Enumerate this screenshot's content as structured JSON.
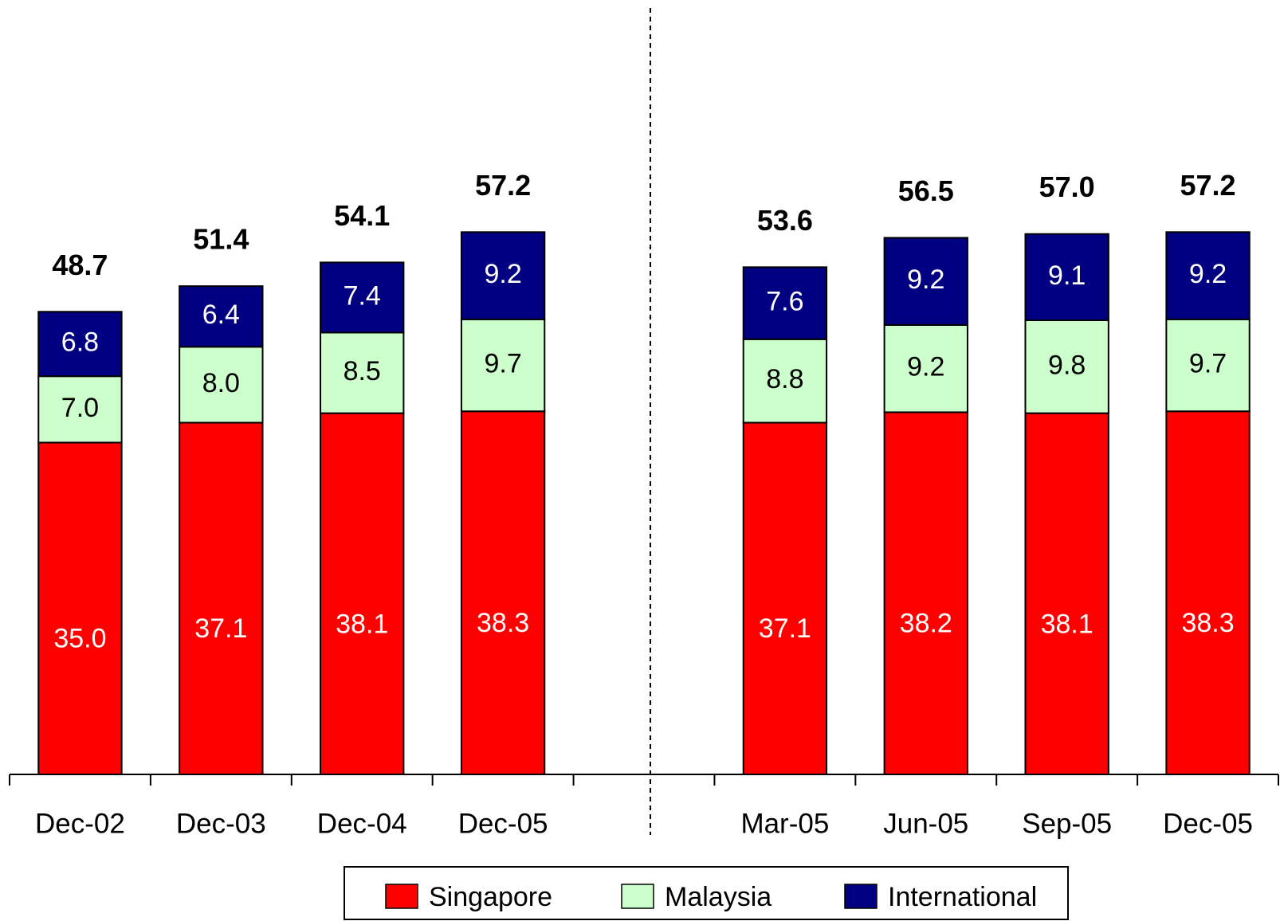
{
  "chart_data": {
    "type": "stacked_bar",
    "categories": [
      "Dec-02",
      "Dec-03",
      "Dec-04",
      "Dec-05",
      null,
      "Mar-05",
      "Jun-05",
      "Sep-05",
      "Dec-05"
    ],
    "series": [
      {
        "name": "Singapore",
        "color": "#ff0000",
        "label_color": "#ffffff",
        "values": [
          35.0,
          37.1,
          38.1,
          38.3,
          null,
          37.1,
          38.2,
          38.1,
          38.3
        ],
        "value_labels": [
          "35.0",
          "37.1",
          "38.1",
          "38.3",
          null,
          "37.1",
          "38.2",
          "38.1",
          "38.3"
        ]
      },
      {
        "name": "Malaysia",
        "color": "#ccffcc",
        "label_color": "#000000",
        "values": [
          7.0,
          8.0,
          8.5,
          9.7,
          null,
          8.8,
          9.2,
          9.8,
          9.7
        ],
        "value_labels": [
          "7.0",
          "8.0",
          "8.5",
          "9.7",
          null,
          "8.8",
          "9.2",
          "9.8",
          "9.7"
        ]
      },
      {
        "name": "International",
        "color": "#000080",
        "label_color": "#ffffff",
        "values": [
          6.8,
          6.4,
          7.4,
          9.2,
          null,
          7.6,
          9.2,
          9.1,
          9.2
        ],
        "value_labels": [
          "6.8",
          "6.4",
          "7.4",
          "9.2",
          null,
          "7.6",
          "9.2",
          "9.1",
          "9.2"
        ]
      }
    ],
    "totals": [
      48.7,
      51.4,
      54.1,
      57.2,
      null,
      53.6,
      56.5,
      57.0,
      57.2
    ],
    "total_labels": [
      "48.7",
      "51.4",
      "54.1",
      "57.2",
      null,
      "53.6",
      "56.5",
      "57.0",
      "57.2"
    ],
    "ylim": [
      0,
      80
    ],
    "legend": "bottom"
  }
}
